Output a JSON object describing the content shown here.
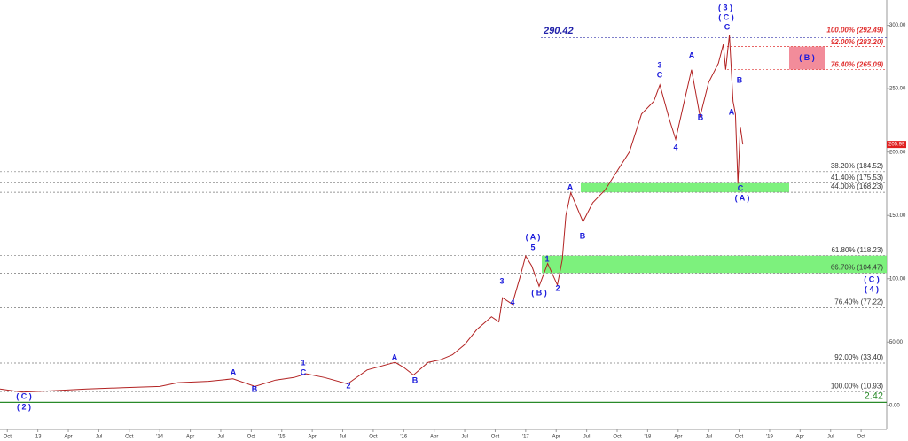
{
  "chart_data": {
    "type": "line",
    "xlim": [
      2012.69,
      2019.96
    ],
    "ylim": [
      -19,
      320
    ],
    "xticks": [
      {
        "value": 2012.75,
        "label": "Oct"
      },
      {
        "value": 2013.0,
        "label": "'13"
      },
      {
        "value": 2013.25,
        "label": "Apr"
      },
      {
        "value": 2013.5,
        "label": "Jul"
      },
      {
        "value": 2013.75,
        "label": "Oct"
      },
      {
        "value": 2014.0,
        "label": "'14"
      },
      {
        "value": 2014.25,
        "label": "Apr"
      },
      {
        "value": 2014.5,
        "label": "Jul"
      },
      {
        "value": 2014.75,
        "label": "Oct"
      },
      {
        "value": 2015.0,
        "label": "'15"
      },
      {
        "value": 2015.25,
        "label": "Apr"
      },
      {
        "value": 2015.5,
        "label": "Jul"
      },
      {
        "value": 2015.75,
        "label": "Oct"
      },
      {
        "value": 2016.0,
        "label": "'16"
      },
      {
        "value": 2016.25,
        "label": "Apr"
      },
      {
        "value": 2016.5,
        "label": "Jul"
      },
      {
        "value": 2016.75,
        "label": "Oct"
      },
      {
        "value": 2017.0,
        "label": "'17"
      },
      {
        "value": 2017.25,
        "label": "Apr"
      },
      {
        "value": 2017.5,
        "label": "Jul"
      },
      {
        "value": 2017.75,
        "label": "Oct"
      },
      {
        "value": 2018.0,
        "label": "'18"
      },
      {
        "value": 2018.25,
        "label": "Apr"
      },
      {
        "value": 2018.5,
        "label": "Jul"
      },
      {
        "value": 2018.75,
        "label": "Oct"
      },
      {
        "value": 2019.0,
        "label": "'19"
      },
      {
        "value": 2019.25,
        "label": "Apr"
      },
      {
        "value": 2019.5,
        "label": "Jul"
      },
      {
        "value": 2019.75,
        "label": "Oct"
      }
    ],
    "yticks": [
      {
        "value": 0,
        "label": "0.00"
      },
      {
        "value": 50,
        "label": "50.00"
      },
      {
        "value": 100,
        "label": "100.00"
      },
      {
        "value": 150,
        "label": "150.00"
      },
      {
        "value": 200,
        "label": "200.00"
      },
      {
        "value": 250,
        "label": "250.00"
      },
      {
        "value": 300,
        "label": "300.00"
      }
    ],
    "series": [
      {
        "color": "#b22222",
        "x": [
          2012.69,
          2012.87,
          2013.1,
          2013.4,
          2013.7,
          2014.0,
          2014.15,
          2014.4,
          2014.6,
          2014.78,
          2014.95,
          2015.1,
          2015.2,
          2015.35,
          2015.54,
          2015.7,
          2015.93,
          2016.0,
          2016.08,
          2016.2,
          2016.3,
          2016.4,
          2016.5,
          2016.6,
          2016.72,
          2016.78,
          2016.81,
          2016.89,
          2016.95,
          2017.0,
          2017.05,
          2017.11,
          2017.18,
          2017.26,
          2017.3,
          2017.33,
          2017.37,
          2017.47,
          2017.55,
          2017.65,
          2017.75,
          2017.85,
          2017.95,
          2018.05,
          2018.1,
          2018.18,
          2018.23,
          2018.3,
          2018.36,
          2018.43,
          2018.5,
          2018.58,
          2018.62,
          2018.64,
          2018.67,
          2018.7,
          2018.72,
          2018.74,
          2018.76,
          2018.78
        ],
        "values": [
          13,
          10.5,
          11.5,
          13,
          14,
          15,
          18,
          19,
          21,
          15,
          20,
          22,
          25,
          22,
          17,
          28,
          34,
          30,
          24,
          34,
          36,
          40,
          48,
          60,
          70,
          66,
          85,
          80,
          100,
          118,
          110,
          94,
          112,
          95,
          115,
          150,
          168,
          145,
          160,
          170,
          185,
          200,
          230,
          240,
          253,
          225,
          210,
          240,
          265,
          228,
          255,
          270,
          285,
          265,
          292.49,
          240,
          230,
          175,
          220,
          205.99
        ]
      }
    ],
    "levels": [
      {
        "value": 184.52,
        "label": "38.20% (184.52)"
      },
      {
        "value": 175.53,
        "label": "41.40% (175.53)"
      },
      {
        "value": 168.23,
        "label": "44.00% (168.23)"
      },
      {
        "value": 118.23,
        "label": "61.80% (118.23)"
      },
      {
        "value": 104.47,
        "label": "66.70% (104.47)"
      },
      {
        "value": 77.22,
        "label": "76.40% (77.22)"
      },
      {
        "value": 33.4,
        "label": "92.00% (33.40)"
      },
      {
        "value": 10.93,
        "label": "100.00% (10.93)"
      }
    ],
    "red_levels": [
      {
        "value": 292.49,
        "label": "100.00% (292.49)"
      },
      {
        "value": 283.2,
        "label": "92.00% (283.20)"
      },
      {
        "value": 265.09,
        "label": "76.40% (265.09)"
      }
    ],
    "high_line": {
      "value": 290.42,
      "label": "290.42"
    },
    "low_line": {
      "value": 2.42,
      "label": "2.42"
    },
    "last_price": {
      "value": 205.99,
      "label": "205.99"
    },
    "zone_label": "( B )",
    "wave_labels": [
      "( C )",
      "( 2 )",
      "A",
      "B",
      "1",
      "C",
      "2",
      "A",
      "B",
      "3",
      "4",
      "( A )",
      "5",
      "( B )",
      "1",
      "2",
      "A",
      "B",
      "3",
      "C",
      "4",
      "A",
      "B",
      "A",
      "B",
      "C",
      "( A )",
      "( 3 )",
      "( C )",
      "C",
      "( C )",
      "( 4 )"
    ]
  }
}
